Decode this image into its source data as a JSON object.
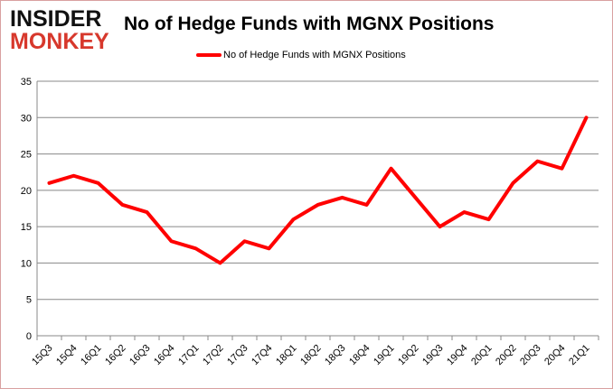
{
  "logo": {
    "line1": "INSIDER",
    "line2": "MONKEY"
  },
  "chart_data": {
    "type": "line",
    "title": "No of Hedge Funds with MGNX Positions",
    "xlabel": "",
    "ylabel": "",
    "categories": [
      "15Q3",
      "15Q4",
      "16Q1",
      "16Q2",
      "16Q3",
      "16Q4",
      "17Q1",
      "17Q2",
      "17Q3",
      "17Q4",
      "18Q1",
      "18Q2",
      "18Q3",
      "18Q4",
      "19Q1",
      "19Q2",
      "19Q3",
      "19Q4",
      "20Q1",
      "20Q2",
      "20Q3",
      "20Q4",
      "21Q1"
    ],
    "series": [
      {
        "name": "No of Hedge Funds with MGNX Positions",
        "color": "#ff0000",
        "values": [
          21,
          22,
          21,
          18,
          17,
          13,
          12,
          10,
          13,
          12,
          16,
          18,
          19,
          18,
          23,
          19,
          15,
          17,
          16,
          21,
          24,
          23,
          30
        ]
      }
    ],
    "ylim": [
      0,
      35
    ],
    "yticks": [
      0,
      5,
      10,
      15,
      20,
      25,
      30,
      35
    ],
    "grid": true,
    "legend": "top-center"
  }
}
